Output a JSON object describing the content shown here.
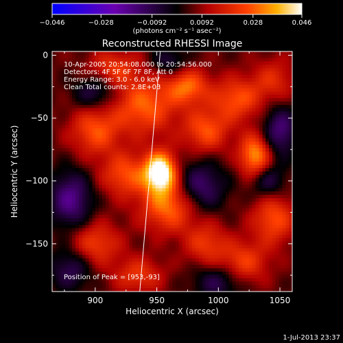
{
  "chart_data": {
    "type": "heatmap",
    "title": "Reconstructed RHESSI Image",
    "xlabel": "Heliocentric X (arcsec)",
    "ylabel": "Heliocentric Y (arcsec)",
    "xlim": [
      865,
      1060
    ],
    "ylim": [
      -188,
      3
    ],
    "x_ticks": [
      900,
      950,
      1000,
      1050
    ],
    "y_ticks": [
      0,
      -50,
      -100,
      -150
    ],
    "colorbar": {
      "range": [
        -0.046,
        0.046
      ],
      "ticks": [
        -0.046,
        -0.028,
        -0.0092,
        0.0092,
        0.028,
        0.046
      ],
      "tick_labels": [
        "−0.046",
        "−0.028",
        "−0.0092",
        "0.0092",
        "0.028",
        "0.046"
      ],
      "unit": "(photons cm⁻² s⁻¹ asec⁻²)"
    },
    "annotations": [
      "10-Apr-2005 20:54:08.000 to 20:54:56.000",
      "Detectors: 4F 5F 6F 7F 8F, Att 0",
      "Energy Range: 3.0 - 6.0 keV",
      "Clean    Total counts: 2.8E+03"
    ],
    "peak_label": "Position of Peak = [953,-93]",
    "peak": {
      "x": 953,
      "y": -93
    },
    "blobs": [
      {
        "x": 953,
        "y": -93,
        "amp": 1.0,
        "sx": 9,
        "sy": 11
      },
      {
        "x": 960,
        "y": -120,
        "amp": 0.55,
        "sx": 16,
        "sy": 14
      },
      {
        "x": 940,
        "y": -40,
        "amp": 0.5,
        "sx": 18,
        "sy": 16
      },
      {
        "x": 900,
        "y": -60,
        "amp": 0.45,
        "sx": 14,
        "sy": 14
      },
      {
        "x": 925,
        "y": -95,
        "amp": 0.45,
        "sx": 14,
        "sy": 12
      },
      {
        "x": 1030,
        "y": -80,
        "amp": 0.65,
        "sx": 9,
        "sy": 12
      },
      {
        "x": 1015,
        "y": -35,
        "amp": 0.45,
        "sx": 14,
        "sy": 12
      },
      {
        "x": 990,
        "y": -60,
        "amp": 0.45,
        "sx": 13,
        "sy": 12
      },
      {
        "x": 975,
        "y": -25,
        "amp": 0.5,
        "sx": 12,
        "sy": 10
      },
      {
        "x": 1045,
        "y": -130,
        "amp": 0.45,
        "sx": 12,
        "sy": 14
      },
      {
        "x": 1020,
        "y": -165,
        "amp": 0.4,
        "sx": 14,
        "sy": 12
      },
      {
        "x": 990,
        "y": -150,
        "amp": 0.35,
        "sx": 12,
        "sy": 12
      },
      {
        "x": 900,
        "y": -150,
        "amp": 0.4,
        "sx": 14,
        "sy": 12
      },
      {
        "x": 935,
        "y": -175,
        "amp": 0.35,
        "sx": 14,
        "sy": 10
      },
      {
        "x": 915,
        "y": -10,
        "amp": 0.35,
        "sx": 14,
        "sy": 10
      },
      {
        "x": 1045,
        "y": -20,
        "amp": 0.3,
        "sx": 12,
        "sy": 12
      },
      {
        "x": 880,
        "y": -115,
        "amp": -0.5,
        "sx": 12,
        "sy": 16
      },
      {
        "x": 900,
        "y": -30,
        "amp": -0.35,
        "sx": 12,
        "sy": 10
      },
      {
        "x": 985,
        "y": -105,
        "amp": -0.45,
        "sx": 14,
        "sy": 14
      },
      {
        "x": 1050,
        "y": -60,
        "amp": -0.45,
        "sx": 10,
        "sy": 14
      },
      {
        "x": 1000,
        "y": -180,
        "amp": -0.35,
        "sx": 14,
        "sy": 10
      },
      {
        "x": 1040,
        "y": -100,
        "amp": -0.35,
        "sx": 10,
        "sy": 10
      },
      {
        "x": 880,
        "y": -170,
        "amp": -0.35,
        "sx": 12,
        "sy": 12
      },
      {
        "x": 960,
        "y": -5,
        "amp": -0.3,
        "sx": 10,
        "sy": 8
      }
    ],
    "limb_line": [
      [
        953,
        5
      ],
      [
        936,
        -190
      ]
    ],
    "grid": false,
    "legend": "none"
  },
  "footer": {
    "timestamp": "1-Jul-2013 23:37"
  }
}
